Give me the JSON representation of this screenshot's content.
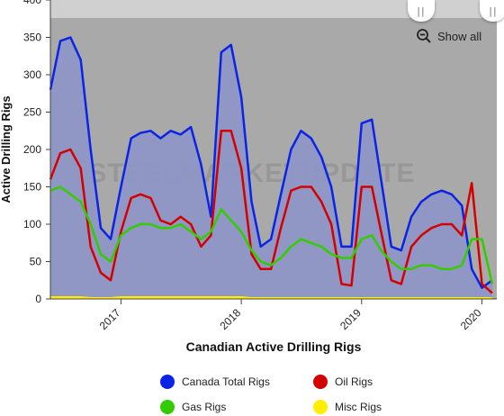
{
  "colors": {
    "background": "#ffffff",
    "plot_background": "#a9a9a9",
    "plot_top_band": "#d0d0d0",
    "canada_total": "#0a24e6",
    "canada_total_fill": "#8f96c6",
    "oil": "#d40000",
    "gas": "#33cc00",
    "misc": "#ffee00",
    "watermark": "#8a8a8a"
  },
  "zoom": {
    "icon": "zoom-out-icon",
    "label": "Show all"
  },
  "watermark": "STEELMARKETUPDATE",
  "chart_data": {
    "type": "area",
    "title": "Canadian Active Drilling Rigs",
    "ylabel": "Active Drilling Rigs",
    "xlabel": "Canadian Active Drilling Rigs",
    "ylim": [
      0,
      400
    ],
    "yticks": [
      0,
      50,
      100,
      150,
      200,
      250,
      300,
      350,
      400
    ],
    "xlim": [
      "2016-06-01",
      "2020-02-15"
    ],
    "xticks": [
      {
        "label": "2017",
        "date": "2017-01-01"
      },
      {
        "label": "2018",
        "date": "2018-01-01"
      },
      {
        "label": "2019",
        "date": "2019-01-01"
      },
      {
        "label": "2020",
        "date": "2020-01-01"
      }
    ],
    "grid": false,
    "legend_position": "bottom",
    "x": [
      "2016-06-01",
      "2016-07-01",
      "2016-08-01",
      "2016-09-01",
      "2016-10-01",
      "2016-11-01",
      "2016-12-01",
      "2017-01-01",
      "2017-02-01",
      "2017-03-01",
      "2017-04-01",
      "2017-05-01",
      "2017-06-01",
      "2017-07-01",
      "2017-08-01",
      "2017-09-01",
      "2017-10-01",
      "2017-11-01",
      "2017-12-01",
      "2018-01-01",
      "2018-02-01",
      "2018-03-01",
      "2018-04-01",
      "2018-05-01",
      "2018-06-01",
      "2018-07-01",
      "2018-08-01",
      "2018-09-01",
      "2018-10-01",
      "2018-11-01",
      "2018-12-01",
      "2019-01-01",
      "2019-02-01",
      "2019-03-01",
      "2019-04-01",
      "2019-05-01",
      "2019-06-01",
      "2019-07-01",
      "2019-08-01",
      "2019-09-01",
      "2019-10-01",
      "2019-11-01",
      "2019-12-01",
      "2020-01-01",
      "2020-02-01"
    ],
    "series": [
      {
        "name": "Canada Total Rigs",
        "key": "canada_total",
        "filled": true,
        "values": [
          280,
          345,
          350,
          320,
          200,
          95,
          80,
          150,
          215,
          222,
          225,
          215,
          225,
          220,
          230,
          180,
          110,
          330,
          340,
          270,
          130,
          70,
          80,
          140,
          200,
          225,
          215,
          190,
          150,
          70,
          70,
          235,
          240,
          160,
          70,
          65,
          110,
          130,
          140,
          145,
          140,
          125,
          40,
          15,
          25
        ]
      },
      {
        "name": "Oil Rigs",
        "key": "oil",
        "values": [
          160,
          195,
          200,
          175,
          70,
          35,
          25,
          90,
          135,
          140,
          135,
          105,
          100,
          110,
          100,
          70,
          85,
          225,
          225,
          175,
          60,
          40,
          40,
          95,
          145,
          150,
          150,
          130,
          100,
          20,
          18,
          150,
          150,
          90,
          25,
          20,
          70,
          85,
          95,
          100,
          100,
          85,
          155,
          20,
          8
        ]
      },
      {
        "name": "Gas Rigs",
        "key": "gas",
        "values": [
          145,
          150,
          140,
          130,
          100,
          60,
          50,
          85,
          95,
          100,
          100,
          95,
          95,
          100,
          90,
          80,
          90,
          120,
          105,
          90,
          65,
          50,
          45,
          55,
          70,
          80,
          75,
          70,
          60,
          55,
          55,
          80,
          85,
          65,
          50,
          40,
          40,
          45,
          45,
          40,
          40,
          45,
          80,
          80,
          20
        ]
      },
      {
        "name": "Misc Rigs",
        "key": "misc",
        "values": [
          2,
          2,
          2,
          2,
          1,
          1,
          1,
          2,
          2,
          2,
          2,
          2,
          2,
          2,
          2,
          2,
          2,
          2,
          2,
          2,
          1,
          1,
          1,
          1,
          1,
          1,
          1,
          1,
          1,
          1,
          1,
          1,
          1,
          1,
          1,
          1,
          1,
          1,
          1,
          1,
          1,
          1,
          1,
          1,
          1
        ]
      }
    ]
  },
  "legend": [
    {
      "label": "Canada Total Rigs",
      "key": "canada_total"
    },
    {
      "label": "Oil Rigs",
      "key": "oil"
    },
    {
      "label": "Gas Rigs",
      "key": "gas"
    },
    {
      "label": "Misc Rigs",
      "key": "misc"
    }
  ]
}
